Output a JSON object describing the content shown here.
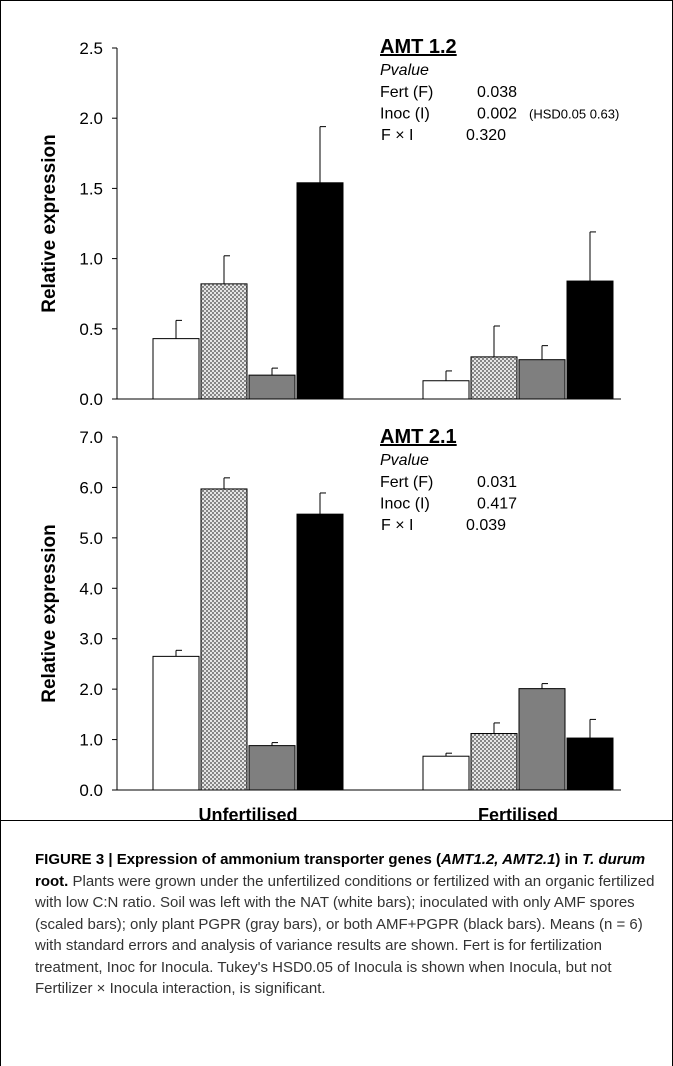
{
  "chart_data": [
    {
      "type": "bar",
      "title": "AMT 1.2",
      "ylabel": "Relative expression",
      "xlabel": "",
      "ylim": [
        0,
        2.5
      ],
      "yticks": [
        "0.0",
        "0.5",
        "1.0",
        "1.5",
        "2.0",
        "2.5"
      ],
      "categories": [
        "Unfertilised",
        "Fertilised"
      ],
      "series": [
        {
          "color": "#ffffff",
          "pattern": "none",
          "values": [
            0.43,
            0.13
          ],
          "errors": [
            0.13,
            0.07
          ]
        },
        {
          "color": "#d0d0d0",
          "pattern": "crosshatch",
          "values": [
            0.82,
            0.3
          ],
          "errors": [
            0.2,
            0.22
          ]
        },
        {
          "color": "#7f7f7f",
          "pattern": "none",
          "values": [
            0.17,
            0.28
          ],
          "errors": [
            0.05,
            0.1
          ]
        },
        {
          "color": "#000000",
          "pattern": "none",
          "values": [
            1.54,
            0.84
          ],
          "errors": [
            0.4,
            0.35
          ]
        }
      ],
      "stats": {
        "heading": "Pvalue",
        "rows": [
          {
            "label": "Fert (F)",
            "value": "0.038",
            "note": ""
          },
          {
            "label": "Inoc (I)",
            "value": "0.002",
            "note": "(HSD0.05 0.63)"
          },
          {
            "label": "F × I",
            "value": "0.320",
            "note": ""
          }
        ]
      }
    },
    {
      "type": "bar",
      "title": "AMT 2.1",
      "ylabel": "Relative expression",
      "xlabel": "",
      "ylim": [
        0,
        7
      ],
      "yticks": [
        "0.0",
        "1.0",
        "2.0",
        "3.0",
        "4.0",
        "5.0",
        "6.0",
        "7.0"
      ],
      "categories": [
        "Unfertilised",
        "Fertilised"
      ],
      "series": [
        {
          "color": "#ffffff",
          "pattern": "none",
          "values": [
            2.65,
            0.67
          ],
          "errors": [
            0.12,
            0.06
          ]
        },
        {
          "color": "#d0d0d0",
          "pattern": "crosshatch",
          "values": [
            5.97,
            1.12
          ],
          "errors": [
            0.22,
            0.21
          ]
        },
        {
          "color": "#7f7f7f",
          "pattern": "none",
          "values": [
            0.88,
            2.01
          ],
          "errors": [
            0.06,
            0.1
          ]
        },
        {
          "color": "#000000",
          "pattern": "none",
          "values": [
            5.47,
            1.03
          ],
          "errors": [
            0.42,
            0.37
          ]
        }
      ],
      "stats": {
        "heading": "Pvalue",
        "rows": [
          {
            "label": "Fert (F)",
            "value": "0.031",
            "note": ""
          },
          {
            "label": "Inoc (I)",
            "value": "0.417",
            "note": ""
          },
          {
            "label": "F × I",
            "value": "0.039",
            "note": ""
          }
        ]
      }
    }
  ],
  "caption": {
    "fig_label": "FIGURE 3 | Expression of ammonium transporter genes (",
    "genes": "AMT1.2, AMT2.1",
    "mid": ") in ",
    "species": "T. durum",
    "end": " root.",
    "body": "Plants were grown under the unfertilized conditions or fertilized with an organic fertilized with low C:N ratio. Soil was left with the NAT (white bars); inoculated with only AMF spores (scaled bars); only plant PGPR (gray bars), or both AMF+PGPR (black bars). Means (n = 6) with standard errors and analysis of variance results are shown. Fert is for fertilization treatment, Inoc for Inocula. Tukey's HSD0.05 of Inocula is shown when Inocula, but not Fertilizer × Inocula interaction, is significant."
  }
}
